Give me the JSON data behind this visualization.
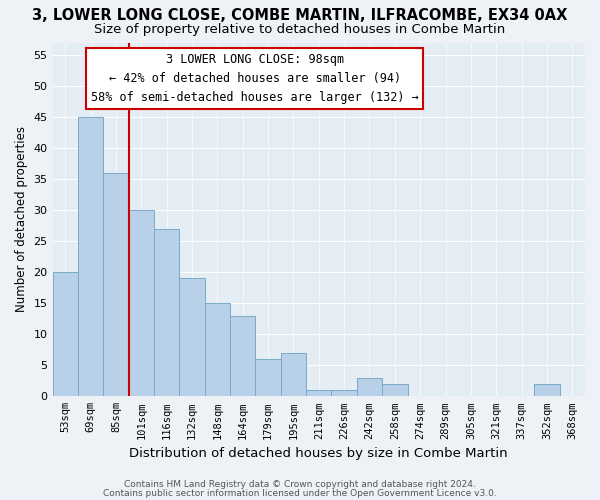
{
  "title": "3, LOWER LONG CLOSE, COMBE MARTIN, ILFRACOMBE, EX34 0AX",
  "subtitle": "Size of property relative to detached houses in Combe Martin",
  "xlabel": "Distribution of detached houses by size in Combe Martin",
  "ylabel": "Number of detached properties",
  "footnote1": "Contains HM Land Registry data © Crown copyright and database right 2024.",
  "footnote2": "Contains public sector information licensed under the Open Government Licence v3.0.",
  "categories": [
    "53sqm",
    "69sqm",
    "85sqm",
    "101sqm",
    "116sqm",
    "132sqm",
    "148sqm",
    "164sqm",
    "179sqm",
    "195sqm",
    "211sqm",
    "226sqm",
    "242sqm",
    "258sqm",
    "274sqm",
    "289sqm",
    "305sqm",
    "321sqm",
    "337sqm",
    "352sqm",
    "368sqm"
  ],
  "values": [
    20,
    45,
    36,
    30,
    27,
    19,
    15,
    13,
    6,
    7,
    1,
    1,
    3,
    2,
    0,
    0,
    0,
    0,
    0,
    2,
    0
  ],
  "bar_color": "#b8d0e8",
  "bar_edge_color": "#7aaac8",
  "annotation_text1": "3 LOWER LONG CLOSE: 98sqm",
  "annotation_text2": "← 42% of detached houses are smaller (94)",
  "annotation_text3": "58% of semi-detached houses are larger (132) →",
  "annotation_border_color": "#cc0000",
  "annotation_bg_color": "#ffffff",
  "vline_color": "#cc0000",
  "vline_index": 2.5,
  "ylim": [
    0,
    57
  ],
  "yticks": [
    0,
    5,
    10,
    15,
    20,
    25,
    30,
    35,
    40,
    45,
    50,
    55
  ],
  "background_color": "#eef2f7",
  "plot_background": "#e4ecf4",
  "grid_color": "#ffffff",
  "title_fontsize": 10.5,
  "subtitle_fontsize": 9.5,
  "xlabel_fontsize": 9.5,
  "ylabel_fontsize": 8.5,
  "annot_fontsize": 8.5
}
